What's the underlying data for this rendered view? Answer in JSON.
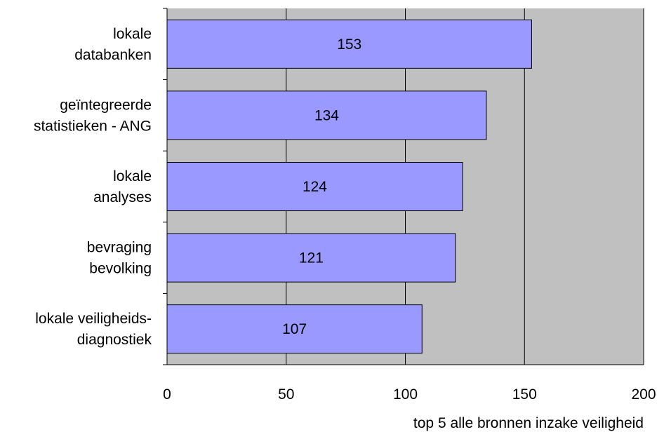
{
  "chart_data": {
    "type": "bar",
    "orientation": "horizontal",
    "categories": [
      [
        "lokale",
        "databanken"
      ],
      [
        "geïntegreerde",
        "statistieken - ANG"
      ],
      [
        "lokale",
        "analyses"
      ],
      [
        "bevraging",
        "bevolking"
      ],
      [
        "lokale veiligheids-",
        "diagnostiek"
      ]
    ],
    "values": [
      153,
      134,
      124,
      121,
      107
    ],
    "data_labels": [
      "153",
      "134",
      "124",
      "121",
      "107"
    ],
    "xlim": [
      0,
      200
    ],
    "x_ticks": [
      0,
      50,
      100,
      150,
      200
    ],
    "x_tick_labels": [
      "0",
      "50",
      "100",
      "150",
      "200"
    ],
    "xlabel": "top 5 alle bronnen inzake veiligheid",
    "grid": "vertical",
    "plot_background": "#c0c0c0",
    "bar_color": "#9999ff",
    "bar_edge_color": "#000000"
  }
}
